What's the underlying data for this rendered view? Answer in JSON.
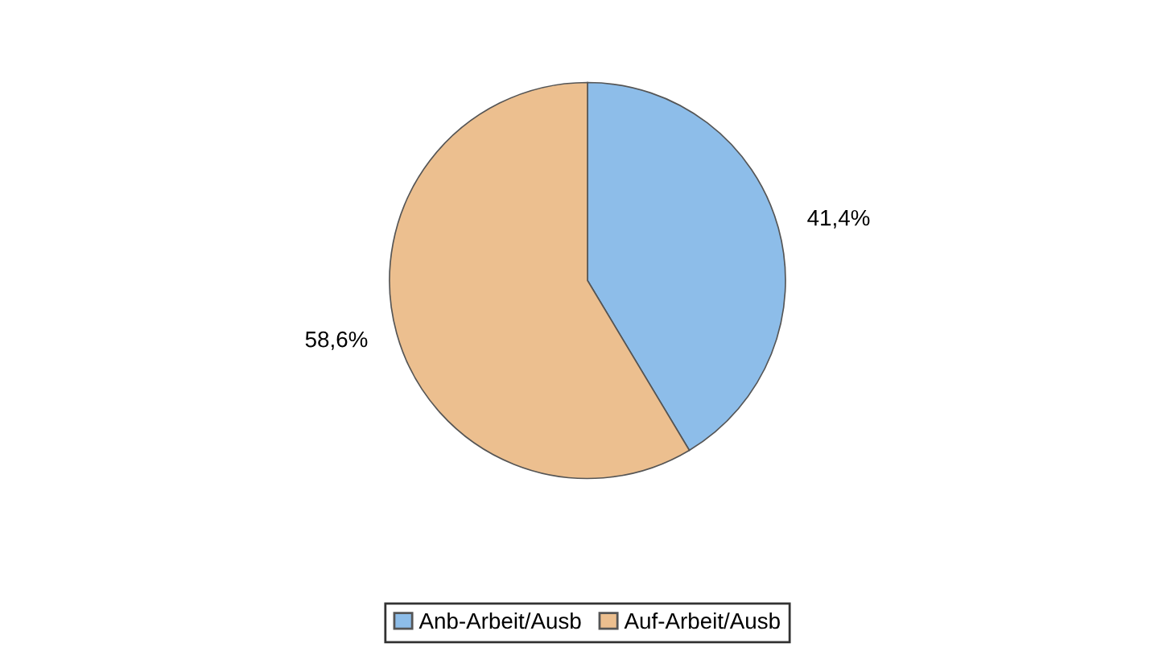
{
  "chart_data": {
    "type": "pie",
    "categories": [
      "Anb-Arbeit/Ausb",
      "Auf-Arbeit/Ausb"
    ],
    "values": [
      41.4,
      58.6
    ],
    "value_labels": [
      "41,4%",
      "58,6%"
    ],
    "colors": [
      "#8dbde9",
      "#ecbf8f"
    ],
    "legend": "bottom"
  }
}
